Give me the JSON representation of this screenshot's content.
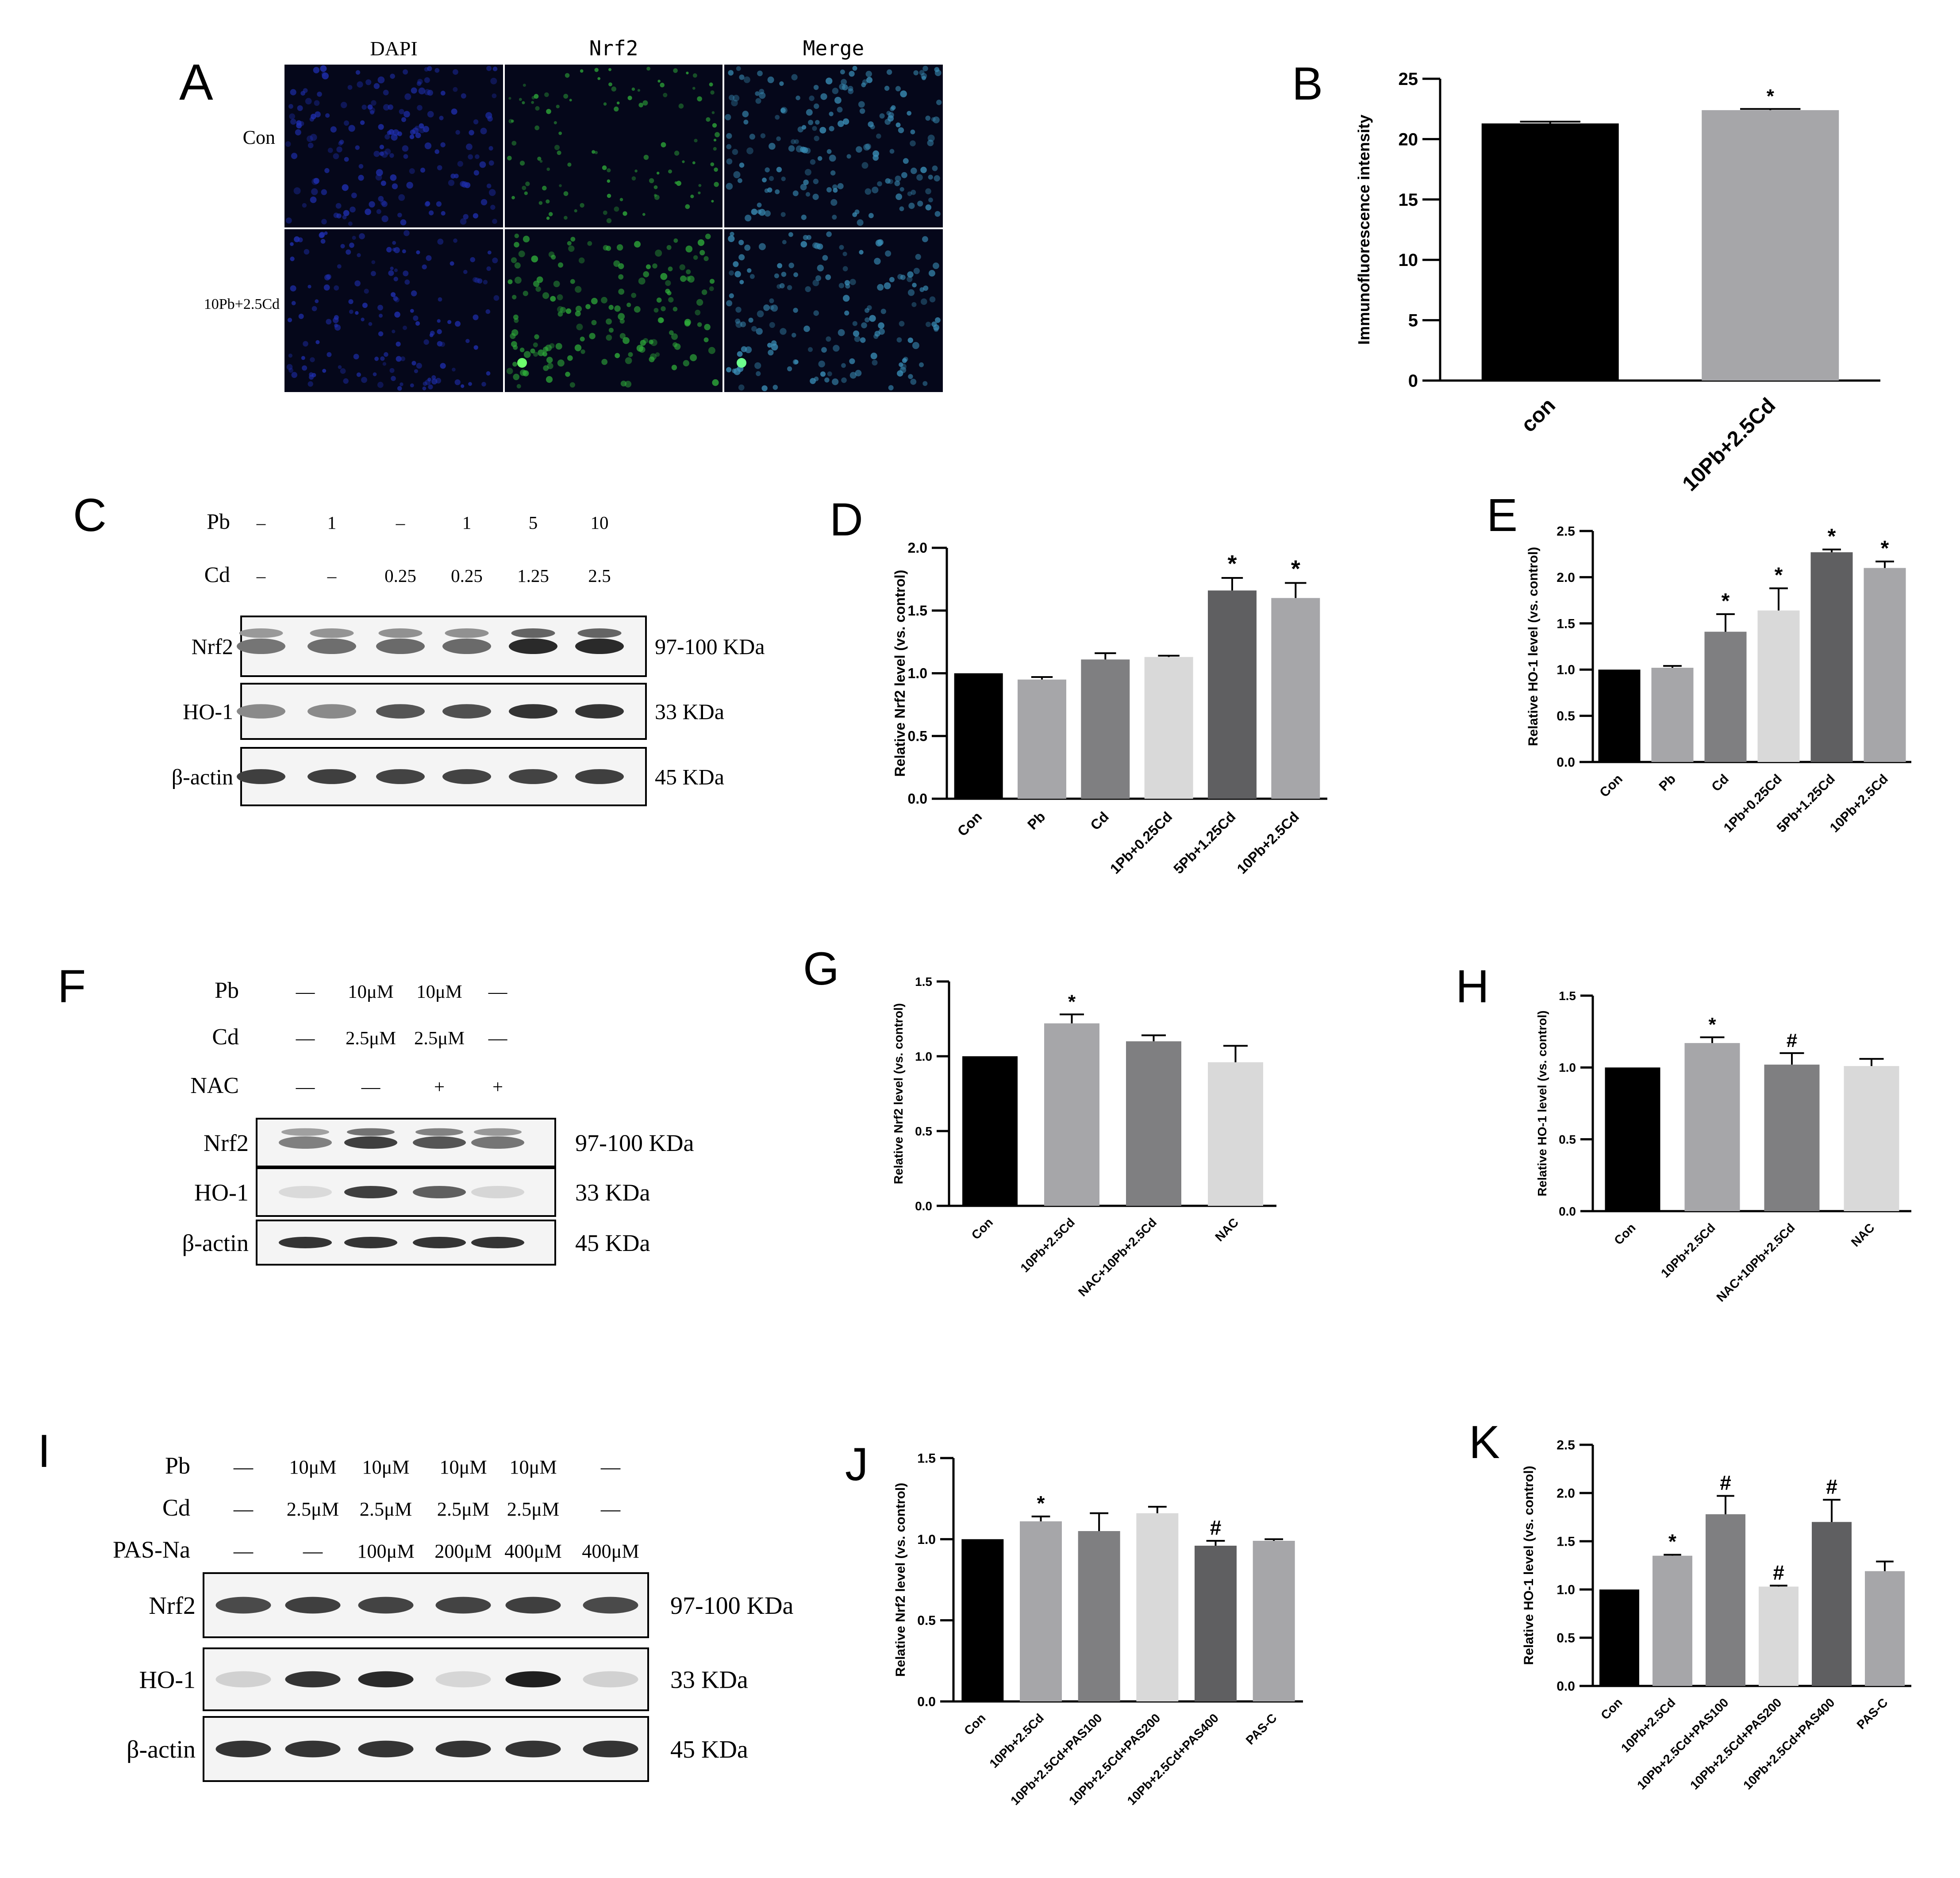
{
  "panel_letters": [
    "A",
    "B",
    "C",
    "D",
    "E",
    "F",
    "G",
    "H",
    "I",
    "J",
    "K"
  ],
  "panel_a": {
    "columns": [
      "DAPI",
      "Nrf2",
      "Merge"
    ],
    "rows": [
      "Con",
      "10Pb+2.5Cd"
    ],
    "colors": {
      "dapi": "#1f2fb0",
      "nrf2": "#2fae3a",
      "merge": "#3a8fb8",
      "background": "#05071a"
    }
  },
  "chart_data": [
    {
      "panel": "B",
      "type": "bar",
      "categories": [
        "con",
        "10Pb+2.5Cd"
      ],
      "values": [
        21.3,
        22.4
      ],
      "errors": [
        0.15,
        0.1
      ],
      "marks": [
        "",
        "*"
      ],
      "ylabel": "Immunofluorescence intensity",
      "ylim": [
        0,
        25
      ],
      "yticks": [
        0,
        5,
        10,
        15,
        20,
        25
      ],
      "colors": [
        "#000000",
        "#a6a6a9"
      ]
    },
    {
      "panel": "D",
      "type": "bar",
      "categories": [
        "Con",
        "Pb",
        "Cd",
        "1Pb+0.25Cd",
        "5Pb+1.25Cd",
        "10Pb+2.5Cd"
      ],
      "values": [
        1.0,
        0.95,
        1.11,
        1.13,
        1.66,
        1.6
      ],
      "errors": [
        0,
        0.02,
        0.05,
        0.01,
        0.1,
        0.12
      ],
      "marks": [
        "",
        "",
        "",
        "",
        "*",
        "*"
      ],
      "ylabel": "Relative Nrf2 level (vs. control)",
      "ylim": [
        0,
        2.0
      ],
      "yticks": [
        0.0,
        0.5,
        1.0,
        1.5,
        2.0
      ],
      "colors": [
        "#000000",
        "#a6a6a9",
        "#7f7f81",
        "#d9d9d9",
        "#5f5f61",
        "#a6a6a9"
      ]
    },
    {
      "panel": "E",
      "type": "bar",
      "categories": [
        "Con",
        "Pb",
        "Cd",
        "1Pb+0.25Cd",
        "5Pb+1.25Cd",
        "10Pb+2.5Cd"
      ],
      "values": [
        1.0,
        1.02,
        1.41,
        1.64,
        2.27,
        2.1
      ],
      "errors": [
        0,
        0.02,
        0.19,
        0.24,
        0.03,
        0.07
      ],
      "marks": [
        "",
        "",
        "*",
        "*",
        "*",
        "*"
      ],
      "ylabel": "Relative HO-1 level (vs. control)",
      "ylim": [
        0,
        2.5
      ],
      "yticks": [
        0.0,
        0.5,
        1.0,
        1.5,
        2.0,
        2.5
      ],
      "colors": [
        "#000000",
        "#a6a6a9",
        "#7f7f81",
        "#d9d9d9",
        "#5f5f61",
        "#a6a6a9"
      ]
    },
    {
      "panel": "G",
      "type": "bar",
      "categories": [
        "Con",
        "10Pb+2.5Cd",
        "NAC+10Pb+2.5Cd",
        "NAC"
      ],
      "values": [
        1.0,
        1.22,
        1.1,
        0.96
      ],
      "errors": [
        0,
        0.06,
        0.04,
        0.11
      ],
      "marks": [
        "",
        "*",
        "",
        ""
      ],
      "ylabel": "Relative Nrf2 level (vs. control)",
      "ylim": [
        0,
        1.5
      ],
      "yticks": [
        0.0,
        0.5,
        1.0,
        1.5
      ],
      "colors": [
        "#000000",
        "#a6a6a9",
        "#7f7f81",
        "#d9d9d9"
      ]
    },
    {
      "panel": "H",
      "type": "bar",
      "categories": [
        "Con",
        "10Pb+2.5Cd",
        "NAC+10Pb+2.5Cd",
        "NAC"
      ],
      "values": [
        1.0,
        1.17,
        1.02,
        1.01
      ],
      "errors": [
        0,
        0.04,
        0.08,
        0.05
      ],
      "marks": [
        "",
        "*",
        "#",
        ""
      ],
      "ylabel": "Relative HO-1 level (vs. control)",
      "ylim": [
        0,
        1.5
      ],
      "yticks": [
        0.0,
        0.5,
        1.0,
        1.5
      ],
      "colors": [
        "#000000",
        "#a6a6a9",
        "#7f7f81",
        "#d9d9d9"
      ]
    },
    {
      "panel": "J",
      "type": "bar",
      "categories": [
        "Con",
        "10Pb+2.5Cd",
        "10Pb+2.5Cd+PAS100",
        "10Pb+2.5Cd+PAS200",
        "10Pb+2.5Cd+PAS400",
        "PAS-C"
      ],
      "values": [
        1.0,
        1.11,
        1.05,
        1.16,
        0.96,
        0.99
      ],
      "errors": [
        0,
        0.03,
        0.11,
        0.04,
        0.03,
        0.01
      ],
      "marks": [
        "",
        "*",
        "",
        "",
        "#",
        ""
      ],
      "ylabel": "Relative Nrf2 level (vs. control)",
      "ylim": [
        0,
        1.5
      ],
      "yticks": [
        0.0,
        0.5,
        1.0,
        1.5
      ],
      "colors": [
        "#000000",
        "#a6a6a9",
        "#7f7f81",
        "#d9d9d9",
        "#5f5f61",
        "#a6a6a9"
      ]
    },
    {
      "panel": "K",
      "type": "bar",
      "categories": [
        "Con",
        "10Pb+2.5Cd",
        "10Pb+2.5Cd+PAS100",
        "10Pb+2.5Cd+PAS200",
        "10Pb+2.5Cd+PAS400",
        "PAS-C"
      ],
      "values": [
        1.0,
        1.35,
        1.78,
        1.03,
        1.7,
        1.19
      ],
      "errors": [
        0,
        0.01,
        0.19,
        0.01,
        0.23,
        0.1
      ],
      "marks": [
        "",
        "*",
        "#",
        "#",
        "#",
        ""
      ],
      "ylabel": "Relative HO-1 level (vs. control)",
      "ylim": [
        0,
        2.5
      ],
      "yticks": [
        0.0,
        0.5,
        1.0,
        1.5,
        2.0,
        2.5
      ],
      "colors": [
        "#000000",
        "#a6a6a9",
        "#7f7f81",
        "#d9d9d9",
        "#5f5f61",
        "#a6a6a9"
      ]
    }
  ],
  "blots": [
    {
      "panel": "C",
      "conditions": [
        {
          "label": "Pb",
          "values": [
            "–",
            "1",
            "–",
            "1",
            "5",
            "10"
          ]
        },
        {
          "label": "Cd",
          "values": [
            "–",
            "–",
            "0.25",
            "0.25",
            "1.25",
            "2.5"
          ]
        }
      ],
      "bands": [
        {
          "protein": "Nrf2",
          "size": "97-100 KDa",
          "intensities": [
            0.55,
            0.58,
            0.6,
            0.6,
            0.9,
            0.9
          ],
          "double": true
        },
        {
          "protein": "HO-1",
          "size": "33 KDa",
          "intensities": [
            0.45,
            0.45,
            0.7,
            0.72,
            0.85,
            0.85
          ],
          "double": false
        },
        {
          "protein": "β-actin",
          "size": "45 KDa",
          "intensities": [
            0.8,
            0.8,
            0.78,
            0.78,
            0.78,
            0.8
          ],
          "double": false
        }
      ]
    },
    {
      "panel": "F",
      "conditions": [
        {
          "label": "Pb",
          "values": [
            "—",
            "10μM",
            "10μM",
            "—"
          ]
        },
        {
          "label": "Cd",
          "values": [
            "—",
            "2.5μM",
            "2.5μM",
            "—"
          ]
        },
        {
          "label": "NAC",
          "values": [
            "—",
            "—",
            "+",
            "+"
          ]
        }
      ],
      "bands": [
        {
          "protein": "Nrf2",
          "size": "97-100 KDa",
          "intensities": [
            0.5,
            0.8,
            0.7,
            0.55
          ],
          "double": true
        },
        {
          "protein": "HO-1",
          "size": "33 KDa",
          "intensities": [
            0.08,
            0.8,
            0.65,
            0.1
          ],
          "double": false
        },
        {
          "protein": "β-actin",
          "size": "45 KDa",
          "intensities": [
            0.85,
            0.85,
            0.85,
            0.85
          ],
          "double": false
        }
      ]
    },
    {
      "panel": "I",
      "conditions": [
        {
          "label": "Pb",
          "values": [
            "—",
            "10μM",
            "10μM",
            "10μM",
            "10μM",
            "—"
          ]
        },
        {
          "label": "Cd",
          "values": [
            "—",
            "2.5μM",
            "2.5μM",
            "2.5μM",
            "2.5μM",
            "—"
          ]
        },
        {
          "label": "PAS-Na",
          "values": [
            "—",
            "—",
            "100μM",
            "200μM",
            "400μM",
            "400μM"
          ]
        }
      ],
      "bands": [
        {
          "protein": "Nrf2",
          "size": "97-100 KDa",
          "intensities": [
            0.75,
            0.8,
            0.78,
            0.78,
            0.8,
            0.75
          ],
          "double": false
        },
        {
          "protein": "HO-1",
          "size": "33 KDa",
          "intensities": [
            0.12,
            0.85,
            0.9,
            0.1,
            0.95,
            0.12
          ],
          "double": false
        },
        {
          "protein": "β-actin",
          "size": "45 KDa",
          "intensities": [
            0.85,
            0.85,
            0.85,
            0.85,
            0.85,
            0.85
          ],
          "double": false
        }
      ]
    }
  ]
}
